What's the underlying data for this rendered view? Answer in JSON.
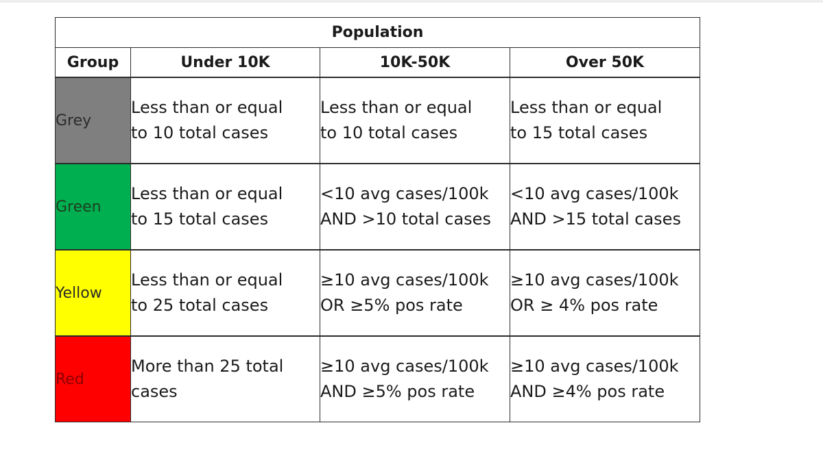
{
  "table": {
    "population_header": "Population",
    "group_header": "Group",
    "columns": [
      "Under 10K",
      "10K-50K",
      "Over 50K"
    ],
    "rows": [
      {
        "group": "Grey",
        "color": "#7f7f7f",
        "cells": [
          [
            "Less than or equal",
            "to 10 total cases"
          ],
          [
            "Less than or equal",
            "to 10 total cases"
          ],
          [
            "Less than or equal",
            "to 15 total cases"
          ]
        ]
      },
      {
        "group": "Green",
        "color": "#00b050",
        "cells": [
          [
            "Less than or equal",
            "to 15 total cases"
          ],
          [
            "<10 avg cases/100k",
            "AND >10 total cases"
          ],
          [
            "<10 avg cases/100k",
            "AND >15 total cases"
          ]
        ]
      },
      {
        "group": "Yellow",
        "color": "#ffff00",
        "cells": [
          [
            "Less than or equal",
            "to 25 total cases"
          ],
          [
            "≥10 avg cases/100k",
            "OR ≥5% pos rate"
          ],
          [
            "≥10 avg cases/100k",
            "OR ≥ 4% pos rate"
          ]
        ]
      },
      {
        "group": "Red",
        "color": "#ff0000",
        "cells": [
          [
            "More than 25 total",
            "cases"
          ],
          [
            "≥10 avg cases/100k",
            "AND ≥5% pos rate"
          ],
          [
            "≥10 avg cases/100k",
            "AND ≥4% pos rate"
          ]
        ]
      }
    ]
  }
}
